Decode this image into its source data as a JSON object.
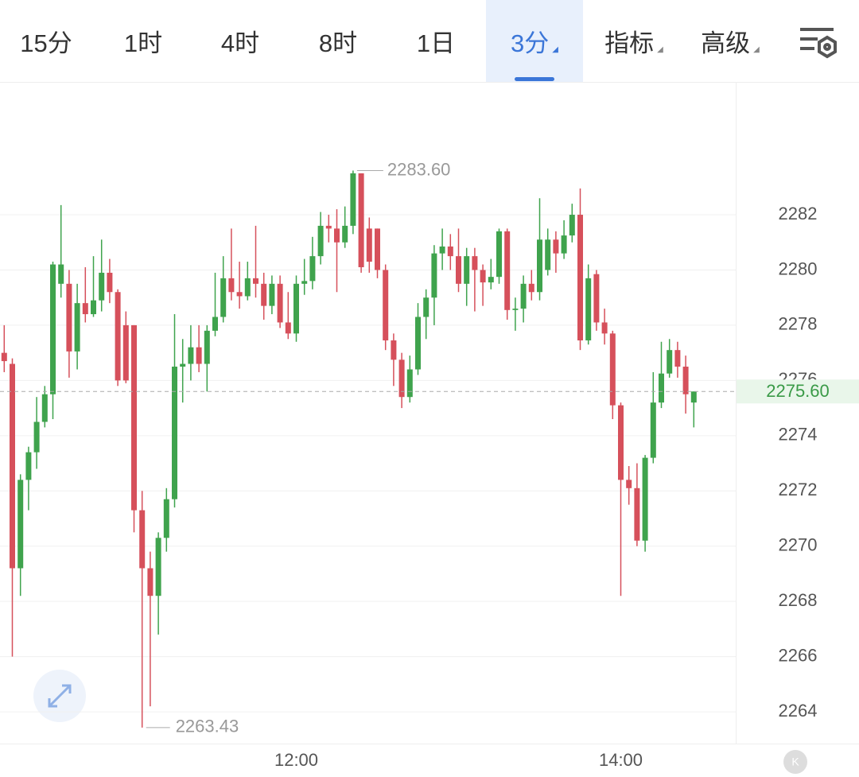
{
  "toolbar": {
    "tabs": [
      "15分",
      "1时",
      "4时",
      "8时",
      "1日",
      "3分",
      "指标",
      "高级"
    ],
    "active": 5,
    "menus": [
      5,
      6,
      7
    ]
  },
  "chart_data": {
    "type": "candlestick",
    "categories": [
      null,
      null,
      null,
      null,
      null,
      null,
      null,
      null,
      null,
      null,
      null,
      null,
      null,
      null,
      null,
      null,
      null,
      null,
      null,
      null,
      null,
      null,
      null,
      null,
      null,
      null,
      null,
      null,
      null,
      null,
      null,
      null,
      null,
      null,
      null,
      null,
      "12:00",
      null,
      null,
      null,
      null,
      null,
      null,
      null,
      null,
      null,
      null,
      null,
      null,
      null,
      null,
      null,
      null,
      null,
      null,
      null,
      null,
      null,
      null,
      null,
      null,
      null,
      null,
      null,
      null,
      null,
      null,
      null,
      null,
      null,
      null,
      null,
      null,
      null,
      null,
      null,
      "14:00",
      null,
      null,
      null,
      null,
      null,
      null,
      null,
      null,
      null
    ],
    "up_color": "#3fa34d",
    "down_color": "#d6505b",
    "series": {
      "open": [
        2277.0,
        2276.6,
        2269.2,
        2272.4,
        2273.4,
        2274.5,
        2275.5,
        2279.5,
        2279.5,
        2277.05,
        2278.8,
        2278.4,
        2278.9,
        2279.9,
        2279.2,
        2278.0,
        2278.0,
        2271.3,
        2269.2,
        2268.2,
        2270.3,
        2271.7,
        2276.5,
        2276.6,
        2277.2,
        2276.6,
        2277.8,
        2278.3,
        2279.7,
        2279.2,
        2279.05,
        2279.7,
        2279.5,
        2278.7,
        2279.5,
        2278.1,
        2277.7,
        2279.5,
        2279.6,
        2280.5,
        2281.6,
        2281.5,
        2281.0,
        2281.6,
        2283.5,
        2281.5,
        2281.5,
        2280.0,
        2277.45,
        2276.75,
        2275.4,
        2276.4,
        2278.3,
        2279.0,
        2280.6,
        2280.85,
        2280.5,
        2279.5,
        2280.5,
        2280.0,
        2279.55,
        2279.75,
        2281.4,
        2278.55,
        2278.6,
        2279.5,
        2279.2,
        2280.0,
        2281.1,
        2280.6,
        2281.25,
        2282.0,
        2277.45,
        2279.85,
        2278.1,
        2277.7,
        2275.1,
        2272.4,
        2272.1,
        2270.2,
        2273.2,
        2275.2,
        2276.25,
        2277.1,
        2276.5,
        2275.2
      ],
      "high": [
        2278.0,
        2276.8,
        2272.6,
        2273.6,
        2275.4,
        2275.8,
        2280.3,
        2282.35,
        2280.0,
        2279.5,
        2280.1,
        2280.5,
        2281.1,
        2280.4,
        2279.3,
        2278.5,
        2278.0,
        2272.0,
        2269.8,
        2270.5,
        2272.1,
        2278.4,
        2277.5,
        2278.0,
        2278.0,
        2278.0,
        2279.9,
        2280.5,
        2281.5,
        2280.3,
        2280.3,
        2281.6,
        2279.9,
        2279.8,
        2279.8,
        2279.2,
        2279.8,
        2280.4,
        2281.2,
        2282.1,
        2282.0,
        2282.2,
        2282.3,
        2283.6,
        2283.5,
        2281.9,
        2281.5,
        2280.2,
        2277.7,
        2277.0,
        2276.9,
        2278.8,
        2279.3,
        2280.9,
        2281.5,
        2281.3,
        2281.5,
        2280.8,
        2280.8,
        2280.2,
        2280.4,
        2281.5,
        2281.5,
        2279.0,
        2279.8,
        2280.0,
        2282.6,
        2281.5,
        2281.4,
        2281.8,
        2282.4,
        2282.95,
        2280.2,
        2280.0,
        2278.6,
        2277.8,
        2275.2,
        2272.9,
        2273.0,
        2273.3,
        2276.3,
        2277.4,
        2277.5,
        2277.4,
        2276.9,
        2275.6
      ],
      "low": [
        2276.3,
        2266.0,
        2268.2,
        2271.3,
        2272.8,
        2274.3,
        2274.6,
        2279.0,
        2276.1,
        2276.4,
        2278.1,
        2278.3,
        2278.5,
        2278.8,
        2275.8,
        2275.9,
        2270.5,
        2263.43,
        2264.2,
        2266.8,
        2269.8,
        2271.4,
        2275.2,
        2276.0,
        2276.3,
        2275.6,
        2277.6,
        2278.1,
        2278.9,
        2278.6,
        2278.9,
        2279.0,
        2278.2,
        2278.4,
        2277.9,
        2277.5,
        2277.4,
        2279.1,
        2279.3,
        2280.2,
        2281.0,
        2279.2,
        2280.8,
        2281.3,
        2279.9,
        2279.9,
        2279.7,
        2277.1,
        2275.8,
        2275.0,
        2275.2,
        2276.2,
        2277.5,
        2278.0,
        2280.0,
        2280.0,
        2279.2,
        2278.7,
        2278.5,
        2278.7,
        2279.3,
        2279.5,
        2278.2,
        2277.8,
        2278.1,
        2278.9,
        2278.9,
        2279.8,
        2279.9,
        2280.4,
        2281.0,
        2277.1,
        2277.3,
        2277.8,
        2277.3,
        2274.6,
        2268.2,
        2271.5,
        2270.0,
        2269.8,
        2273.0,
        2275.0,
        2276.1,
        2276.1,
        2274.8,
        2274.3
      ],
      "close": [
        2276.7,
        2269.2,
        2272.4,
        2273.4,
        2274.5,
        2275.5,
        2280.2,
        2280.2,
        2277.05,
        2278.8,
        2278.4,
        2278.9,
        2279.9,
        2279.2,
        2276.0,
        2276.0,
        2271.3,
        2269.2,
        2268.2,
        2270.3,
        2271.7,
        2276.5,
        2276.6,
        2277.2,
        2276.6,
        2277.8,
        2278.3,
        2279.7,
        2279.2,
        2279.05,
        2279.7,
        2279.5,
        2278.7,
        2279.5,
        2278.1,
        2277.7,
        2279.5,
        2279.6,
        2280.5,
        2281.6,
        2281.5,
        2281.0,
        2281.6,
        2283.5,
        2280.1,
        2280.3,
        2280.0,
        2277.45,
        2276.75,
        2275.4,
        2276.4,
        2278.3,
        2279.0,
        2280.6,
        2280.85,
        2280.5,
        2279.5,
        2280.5,
        2280.0,
        2279.55,
        2279.75,
        2281.4,
        2278.55,
        2278.6,
        2279.5,
        2279.2,
        2281.1,
        2281.1,
        2280.6,
        2281.25,
        2282.0,
        2277.45,
        2279.7,
        2278.1,
        2277.7,
        2275.1,
        2272.4,
        2272.1,
        2270.2,
        2273.2,
        2275.2,
        2276.25,
        2277.1,
        2276.5,
        2275.5,
        2275.6
      ]
    },
    "ylim": [
      2262.85,
      2286.81
    ],
    "yticks": [
      2264,
      2266,
      2268,
      2270,
      2272,
      2274,
      2276,
      2278,
      2280,
      2282
    ],
    "grid": true,
    "last_price": {
      "value": 2275.6,
      "label": "2275.60"
    },
    "max_label": {
      "value": 2283.6,
      "label": "2283.60"
    },
    "min_label": 2263.43
  }
}
